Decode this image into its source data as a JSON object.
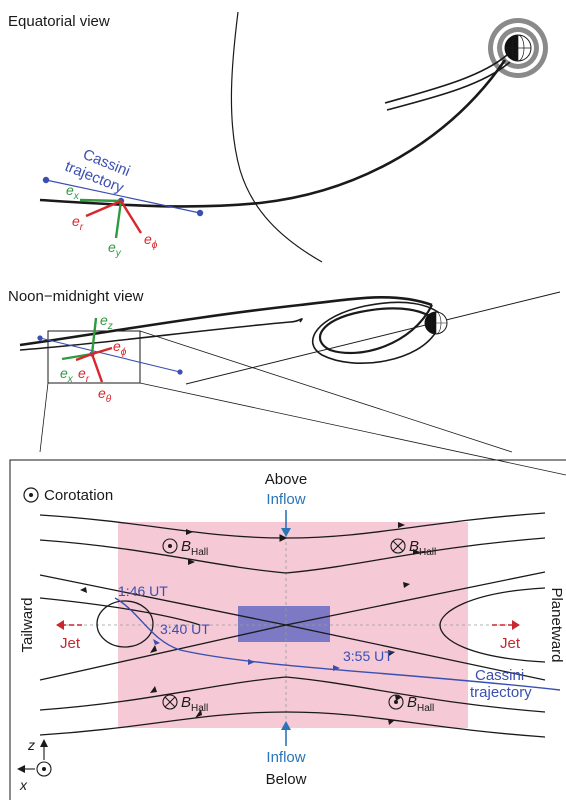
{
  "colors": {
    "cassini": "#3a4fb0",
    "green_vec": "#2f9a3e",
    "red_vec": "#d9262c",
    "flow_blue": "#2a74b8",
    "pink_region": "#f5c9d6",
    "diffusion_region": "#7d79c4",
    "line": "#1a1a1a",
    "jet_red": "#c8282e"
  },
  "equatorial": {
    "title": "Equatorial view",
    "trajectory_label_1": "Cassini",
    "trajectory_label_2": "trajectory",
    "vectors": {
      "ex": {
        "base": "e",
        "sub": "x"
      },
      "ey": {
        "base": "e",
        "sub": "y"
      },
      "er": {
        "base": "e",
        "sub": "r"
      },
      "ephi": {
        "base": "e",
        "sub": "ϕ"
      }
    }
  },
  "noon_midnight": {
    "title": "Noon−midnight view",
    "vectors": {
      "ez": {
        "base": "e",
        "sub": "z"
      },
      "ephi": {
        "base": "e",
        "sub": "ϕ"
      },
      "ex": {
        "base": "e",
        "sub": "x"
      },
      "er": {
        "base": "e",
        "sub": "r"
      },
      "etheta": {
        "base": "e",
        "sub": "θ"
      }
    }
  },
  "reconnection": {
    "corotation_label": "Corotation",
    "above": "Above",
    "below": "Below",
    "inflow_top": "Inflow",
    "inflow_bottom": "Inflow",
    "tailward": "Tailward",
    "planetward": "Planetward",
    "jet_left": "Jet",
    "jet_right": "Jet",
    "hall": {
      "base": "B",
      "sub": "Hall"
    },
    "times": [
      "1:46 UT",
      "3:40 UT",
      "3:55 UT"
    ],
    "trajectory_label_1": "Cassini",
    "trajectory_label_2": "trajectory",
    "axis_z": "z",
    "axis_x": "x"
  }
}
